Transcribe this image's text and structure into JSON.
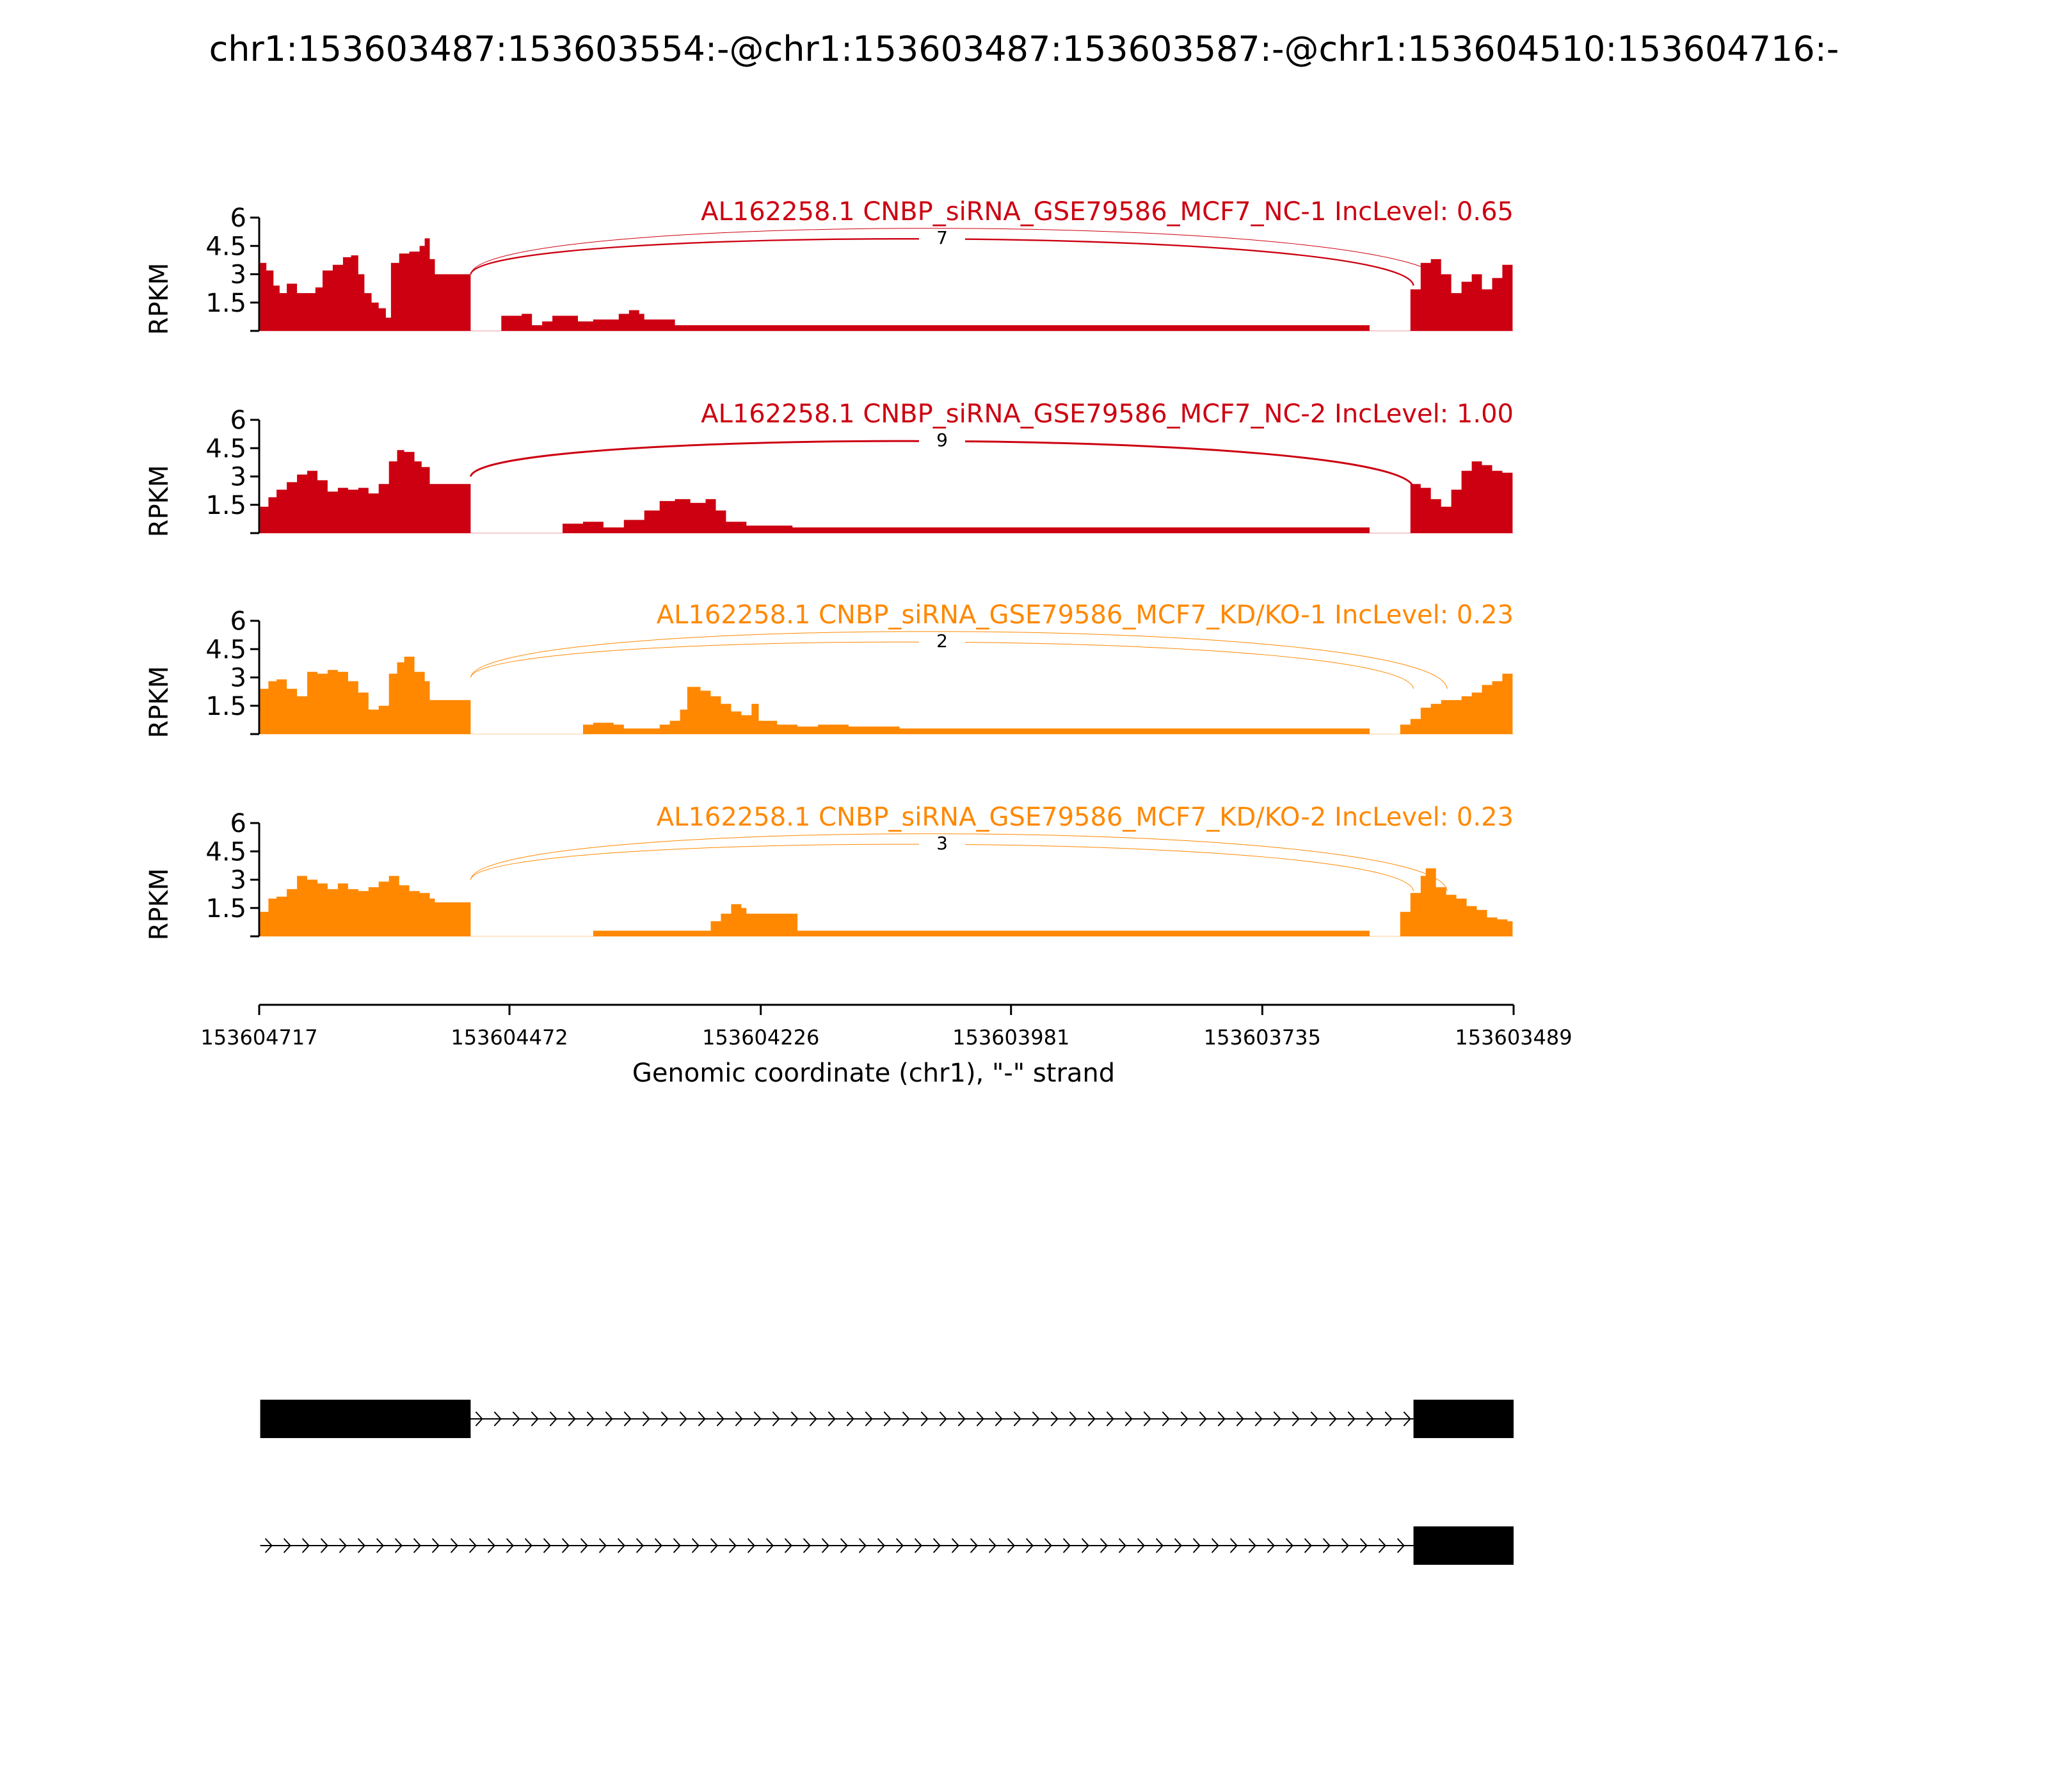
{
  "chart_data": {
    "type": "area",
    "title": "chr1:153603487:153603554:-@chr1:153603487:153603587:-@chr1:153604510:153604716:-",
    "xlabel": "Genomic coordinate (chr1), \"-\" strand",
    "ylabel": "RPKM",
    "xlim": [
      153604717,
      153603489
    ],
    "x_ticks": [
      "153604717",
      "153604472",
      "153604226",
      "153603981",
      "153603735",
      "153603489"
    ],
    "ylim": [
      0,
      6
    ],
    "y_ticks": [
      "1.5",
      "3",
      "4.5",
      "6"
    ],
    "grid": false,
    "colors": {
      "NC": "#cc0011",
      "KD": "#ff8800",
      "gene": "#000000"
    },
    "series": [
      {
        "name": "AL162258.1 CNBP_siRNA_GSE79586_MCF7_NC-1 IncLevel: 0.65",
        "color": "#cc0011",
        "coverage": [
          [
            153604716,
            3.6
          ],
          [
            153604710,
            3.2
          ],
          [
            153604703,
            2.4
          ],
          [
            153604697,
            2.0
          ],
          [
            153604690,
            2.5
          ],
          [
            153604680,
            2.0
          ],
          [
            153604670,
            2.0
          ],
          [
            153604662,
            2.3
          ],
          [
            153604655,
            3.2
          ],
          [
            153604645,
            3.5
          ],
          [
            153604635,
            3.9
          ],
          [
            153604627,
            4.0
          ],
          [
            153604620,
            3.0
          ],
          [
            153604614,
            2.0
          ],
          [
            153604607,
            1.5
          ],
          [
            153604600,
            1.2
          ],
          [
            153604593,
            0.7
          ],
          [
            153604588,
            3.6
          ],
          [
            153604580,
            4.1
          ],
          [
            153604570,
            4.2
          ],
          [
            153604560,
            4.5
          ],
          [
            153604555,
            4.9
          ],
          [
            153604550,
            3.8
          ],
          [
            153604545,
            3.0
          ],
          [
            153604510,
            0.0
          ],
          [
            153604480,
            0.8
          ],
          [
            153604470,
            0.8
          ],
          [
            153604460,
            0.9
          ],
          [
            153604450,
            0.3
          ],
          [
            153604440,
            0.5
          ],
          [
            153604430,
            0.8
          ],
          [
            153604420,
            0.8
          ],
          [
            153604405,
            0.5
          ],
          [
            153604390,
            0.6
          ],
          [
            153604375,
            0.6
          ],
          [
            153604365,
            0.9
          ],
          [
            153604355,
            1.1
          ],
          [
            153604345,
            0.9
          ],
          [
            153604340,
            0.6
          ],
          [
            153604310,
            0.3
          ],
          [
            153604290,
            0.3
          ],
          [
            153604260,
            0.3
          ],
          [
            153604245,
            0.3
          ],
          [
            153604205,
            0.3
          ],
          [
            153604140,
            0.3
          ],
          [
            153603990,
            0.3
          ],
          [
            153603950,
            0.3
          ],
          [
            153603630,
            0.0
          ],
          [
            153603590,
            2.2
          ],
          [
            153603580,
            3.6
          ],
          [
            153603570,
            3.8
          ],
          [
            153603560,
            3.0
          ],
          [
            153603550,
            2.0
          ],
          [
            153603540,
            2.6
          ],
          [
            153603530,
            3.0
          ],
          [
            153603520,
            2.2
          ],
          [
            153603510,
            2.8
          ],
          [
            153603500,
            3.5
          ],
          [
            153603490,
            4.0
          ]
        ],
        "junctions": [
          {
            "from": 153604510,
            "to": 153603587,
            "reads": 7,
            "label": "7"
          },
          {
            "from": 153604510,
            "to": 153603554,
            "reads": 1,
            "label": ""
          }
        ]
      },
      {
        "name": "AL162258.1 CNBP_siRNA_GSE79586_MCF7_NC-2 IncLevel: 1.00",
        "color": "#cc0011",
        "coverage": [
          [
            153604716,
            1.4
          ],
          [
            153604708,
            1.9
          ],
          [
            153604700,
            2.3
          ],
          [
            153604690,
            2.7
          ],
          [
            153604680,
            3.1
          ],
          [
            153604670,
            3.3
          ],
          [
            153604660,
            2.8
          ],
          [
            153604650,
            2.2
          ],
          [
            153604640,
            2.4
          ],
          [
            153604630,
            2.3
          ],
          [
            153604620,
            2.4
          ],
          [
            153604610,
            2.1
          ],
          [
            153604600,
            2.6
          ],
          [
            153604590,
            3.8
          ],
          [
            153604582,
            4.4
          ],
          [
            153604575,
            4.3
          ],
          [
            153604565,
            3.8
          ],
          [
            153604558,
            3.5
          ],
          [
            153604550,
            2.6
          ],
          [
            153604545,
            2.6
          ],
          [
            153604510,
            0.0
          ],
          [
            153604420,
            0.5
          ],
          [
            153604400,
            0.6
          ],
          [
            153604380,
            0.3
          ],
          [
            153604360,
            0.7
          ],
          [
            153604340,
            1.2
          ],
          [
            153604325,
            1.7
          ],
          [
            153604310,
            1.8
          ],
          [
            153604295,
            1.6
          ],
          [
            153604280,
            1.8
          ],
          [
            153604270,
            1.2
          ],
          [
            153604260,
            0.6
          ],
          [
            153604250,
            0.6
          ],
          [
            153604240,
            0.4
          ],
          [
            153604195,
            0.3
          ],
          [
            153604160,
            0.3
          ],
          [
            153604140,
            0.3
          ],
          [
            153603630,
            0.0
          ],
          [
            153603590,
            2.6
          ],
          [
            153603580,
            2.4
          ],
          [
            153603570,
            1.8
          ],
          [
            153603560,
            1.4
          ],
          [
            153603550,
            2.3
          ],
          [
            153603540,
            3.3
          ],
          [
            153603530,
            3.8
          ],
          [
            153603520,
            3.6
          ],
          [
            153603510,
            3.3
          ],
          [
            153603500,
            3.2
          ],
          [
            153603490,
            3.2
          ]
        ],
        "junctions": [
          {
            "from": 153604510,
            "to": 153603587,
            "reads": 9,
            "label": "9"
          }
        ]
      },
      {
        "name": "AL162258.1 CNBP_siRNA_GSE79586_MCF7_KD/KO-1 IncLevel: 0.23",
        "color": "#ff8800",
        "coverage": [
          [
            153604716,
            2.4
          ],
          [
            153604708,
            2.8
          ],
          [
            153604700,
            2.9
          ],
          [
            153604690,
            2.4
          ],
          [
            153604680,
            2.0
          ],
          [
            153604670,
            3.3
          ],
          [
            153604660,
            3.2
          ],
          [
            153604650,
            3.4
          ],
          [
            153604640,
            3.3
          ],
          [
            153604630,
            2.8
          ],
          [
            153604620,
            2.2
          ],
          [
            153604610,
            1.3
          ],
          [
            153604600,
            1.5
          ],
          [
            153604590,
            3.2
          ],
          [
            153604582,
            3.8
          ],
          [
            153604575,
            4.1
          ],
          [
            153604565,
            3.3
          ],
          [
            153604555,
            2.8
          ],
          [
            153604550,
            1.8
          ],
          [
            153604545,
            1.8
          ],
          [
            153604510,
            0.0
          ],
          [
            153604400,
            0.5
          ],
          [
            153604390,
            0.6
          ],
          [
            153604370,
            0.5
          ],
          [
            153604360,
            0.3
          ],
          [
            153604325,
            0.5
          ],
          [
            153604315,
            0.7
          ],
          [
            153604305,
            1.3
          ],
          [
            153604298,
            2.5
          ],
          [
            153604285,
            2.3
          ],
          [
            153604275,
            2.0
          ],
          [
            153604265,
            1.6
          ],
          [
            153604255,
            1.2
          ],
          [
            153604245,
            1.0
          ],
          [
            153604235,
            1.6
          ],
          [
            153604228,
            0.7
          ],
          [
            153604210,
            0.5
          ],
          [
            153604190,
            0.4
          ],
          [
            153604170,
            0.5
          ],
          [
            153604155,
            0.5
          ],
          [
            153604140,
            0.4
          ],
          [
            153604090,
            0.3
          ],
          [
            153604060,
            0.3
          ],
          [
            153603630,
            0.0
          ],
          [
            153603600,
            0.5
          ],
          [
            153603590,
            0.8
          ],
          [
            153603580,
            1.4
          ],
          [
            153603570,
            1.6
          ],
          [
            153603560,
            1.8
          ],
          [
            153603550,
            1.8
          ],
          [
            153603540,
            2.0
          ],
          [
            153603530,
            2.2
          ],
          [
            153603520,
            2.6
          ],
          [
            153603510,
            2.8
          ],
          [
            153603500,
            3.2
          ],
          [
            153603490,
            4.3
          ]
        ],
        "junctions": [
          {
            "from": 153604510,
            "to": 153603587,
            "reads": 2,
            "label": "2"
          },
          {
            "from": 153604510,
            "to": 153603554,
            "reads": 1,
            "label": ""
          }
        ]
      },
      {
        "name": "AL162258.1 CNBP_siRNA_GSE79586_MCF7_KD/KO-2 IncLevel: 0.23",
        "color": "#ff8800",
        "coverage": [
          [
            153604716,
            1.3
          ],
          [
            153604708,
            2.0
          ],
          [
            153604700,
            2.1
          ],
          [
            153604690,
            2.5
          ],
          [
            153604680,
            3.2
          ],
          [
            153604670,
            3.0
          ],
          [
            153604660,
            2.8
          ],
          [
            153604650,
            2.5
          ],
          [
            153604640,
            2.8
          ],
          [
            153604630,
            2.5
          ],
          [
            153604620,
            2.4
          ],
          [
            153604610,
            2.6
          ],
          [
            153604600,
            2.9
          ],
          [
            153604590,
            3.2
          ],
          [
            153604580,
            2.7
          ],
          [
            153604570,
            2.4
          ],
          [
            153604560,
            2.3
          ],
          [
            153604550,
            2.0
          ],
          [
            153604545,
            1.8
          ],
          [
            153604510,
            0.0
          ],
          [
            153604390,
            0.3
          ],
          [
            153604350,
            0.3
          ],
          [
            153604290,
            0.3
          ],
          [
            153604275,
            0.8
          ],
          [
            153604265,
            1.2
          ],
          [
            153604255,
            1.7
          ],
          [
            153604245,
            1.5
          ],
          [
            153604240,
            1.2
          ],
          [
            153604190,
            0.3
          ],
          [
            153603710,
            0.3
          ],
          [
            153603630,
            0.0
          ],
          [
            153603600,
            1.3
          ],
          [
            153603590,
            2.3
          ],
          [
            153603580,
            3.2
          ],
          [
            153603575,
            3.6
          ],
          [
            153603565,
            2.6
          ],
          [
            153603555,
            2.2
          ],
          [
            153603545,
            2.0
          ],
          [
            153603535,
            1.6
          ],
          [
            153603525,
            1.4
          ],
          [
            153603515,
            1.0
          ],
          [
            153603505,
            0.9
          ],
          [
            153603495,
            0.8
          ],
          [
            153603490,
            0.8
          ]
        ],
        "junctions": [
          {
            "from": 153604510,
            "to": 153603587,
            "reads": 3,
            "label": "3"
          },
          {
            "from": 153604510,
            "to": 153603554,
            "reads": 1,
            "label": ""
          }
        ]
      }
    ],
    "gene_models": [
      {
        "exons": [
          [
            153604716,
            153604510
          ],
          [
            153603587,
            153603489
          ]
        ],
        "intron": [
          153604510,
          153603587
        ]
      },
      {
        "exons": [
          [
            153603587,
            153603489
          ]
        ],
        "intron": [
          153604716,
          153603587
        ]
      }
    ]
  }
}
